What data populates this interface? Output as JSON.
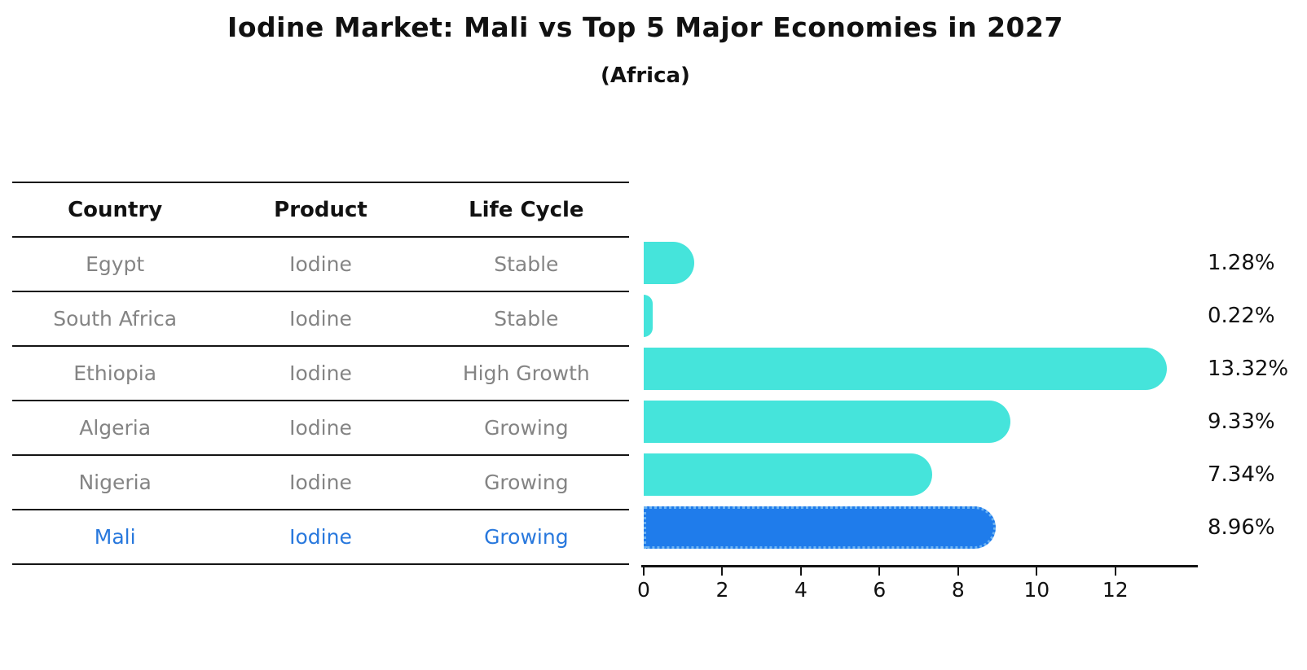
{
  "title": "Iodine Market: Mali vs Top 5 Major Economies in 2027",
  "subtitle": "(Africa)",
  "table": {
    "columns": [
      "Country",
      "Product",
      "Life Cycle"
    ],
    "rows": [
      {
        "country": "Egypt",
        "product": "Iodine",
        "life_cycle": "Stable",
        "highlight": false
      },
      {
        "country": "South Africa",
        "product": "Iodine",
        "life_cycle": "Stable",
        "highlight": false
      },
      {
        "country": "Ethiopia",
        "product": "Iodine",
        "life_cycle": "High Growth",
        "highlight": false
      },
      {
        "country": "Algeria",
        "product": "Iodine",
        "life_cycle": "Growing",
        "highlight": false
      },
      {
        "country": "Nigeria",
        "product": "Iodine",
        "life_cycle": "Growing",
        "highlight": true
      }
    ]
  },
  "chart_data": {
    "type": "bar",
    "orientation": "horizontal",
    "title": "Iodine Market: Mali vs Top 5 Major Economies in 2027",
    "subtitle": "(Africa)",
    "categories": [
      "Egypt",
      "South Africa",
      "Ethiopia",
      "Algeria",
      "Nigeria",
      "Mali"
    ],
    "values": [
      1.28,
      0.22,
      13.32,
      9.33,
      7.34,
      8.96
    ],
    "labels": [
      "1.28%",
      "0.22%",
      "13.32%",
      "9.33%",
      "7.34%",
      "8.96%"
    ],
    "xticks": [
      0,
      2,
      4,
      6,
      8,
      10,
      12
    ],
    "xlim": [
      0,
      14.1
    ],
    "grid": false,
    "legend": "none",
    "highlight_category": "Mali",
    "colors": {
      "bar": "#45e4db",
      "highlight_bar": "#1f7ceb",
      "highlight_border": "#6db3f2",
      "row_text": "#848484",
      "highlight_text": "#2878dd",
      "text": "#111111"
    }
  },
  "mali_row": {
    "country": "Mali",
    "product": "Iodine",
    "life_cycle": "Growing",
    "highlight": true
  }
}
